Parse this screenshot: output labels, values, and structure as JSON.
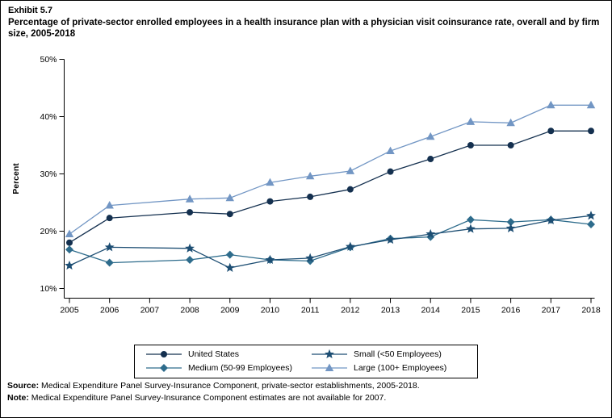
{
  "header": {
    "exhibit": "Exhibit 5.7",
    "title": "Percentage of private-sector enrolled employees in a health insurance plan with a physician visit coinsurance rate, overall and by firm size, 2005-2018"
  },
  "footer": {
    "source_label": "Source:",
    "source_text": " Medical Expenditure Panel Survey-Insurance Component, private-sector establishments, 2005-2018.",
    "note_label": "Note:",
    "note_text": " Medical Expenditure Panel Survey-Insurance Component estimates are not available for 2007."
  },
  "chart_data": {
    "type": "line",
    "title": "Percentage of private-sector enrolled employees in a health insurance plan with a physician visit coinsurance rate, overall and by firm size, 2005-2018",
    "xlabel": "",
    "ylabel": "Percent",
    "ylim": [
      10,
      50
    ],
    "yticks": [
      10,
      20,
      30,
      40,
      50
    ],
    "ytick_suffix": "%",
    "grid": false,
    "legend_position": "bottom",
    "x": [
      2005,
      2006,
      2007,
      2008,
      2009,
      2010,
      2011,
      2012,
      2013,
      2014,
      2015,
      2016,
      2017,
      2018
    ],
    "series": [
      {
        "name": "United States",
        "marker": "circle",
        "color": "#14304f",
        "values": [
          18.0,
          22.3,
          null,
          23.3,
          23.0,
          25.2,
          26.0,
          27.3,
          30.4,
          32.6,
          35.0,
          35.0,
          37.5,
          37.5
        ]
      },
      {
        "name": "Medium (50-99 Employees)",
        "marker": "diamond",
        "color": "#2e6c8c",
        "values": [
          16.8,
          14.5,
          null,
          15.0,
          15.9,
          15.0,
          14.8,
          17.2,
          18.7,
          19.0,
          22.0,
          21.6,
          22.0,
          21.2
        ]
      },
      {
        "name": "Small (<50 Employees)",
        "marker": "star",
        "color": "#1d4e73",
        "values": [
          14.0,
          17.2,
          null,
          17.0,
          13.6,
          15.0,
          15.3,
          17.3,
          18.5,
          19.5,
          20.4,
          20.5,
          21.9,
          22.7
        ]
      },
      {
        "name": "Large (100+ Employees)",
        "marker": "triangle",
        "color": "#7296c4",
        "values": [
          19.5,
          24.5,
          null,
          25.6,
          25.8,
          28.5,
          29.6,
          30.5,
          34.0,
          36.5,
          39.1,
          38.9,
          42.0,
          42.0
        ]
      }
    ],
    "legend_order": [
      0,
      2,
      1,
      3
    ]
  }
}
